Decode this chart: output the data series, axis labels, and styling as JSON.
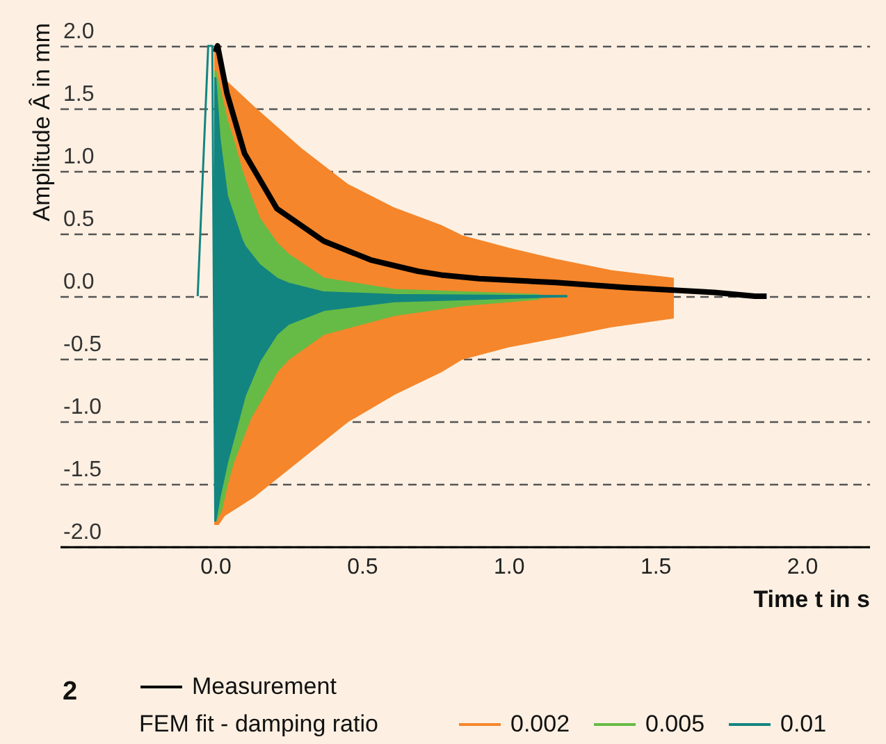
{
  "chart_data": {
    "type": "area",
    "xlabel": "Time t in s",
    "ylabel": "Amplitude Â in mm",
    "xlim": [
      -0.53,
      2.23
    ],
    "ylim": [
      -2.0,
      2.0
    ],
    "xticks": [
      {
        "value": 0,
        "label": "0.0"
      },
      0.5,
      {
        "value": 1,
        "label": "1.0"
      },
      1.5,
      {
        "value": 2,
        "label": "2.0"
      }
    ],
    "yticks": [
      {
        "value": -2,
        "label": "-2.0"
      },
      {
        "value": -1.5,
        "label": "-1.5"
      },
      {
        "value": -1,
        "label": "-1.0"
      },
      {
        "value": -0.5,
        "label": "-0.5"
      },
      {
        "value": 0,
        "label": "0.0"
      },
      0.5,
      {
        "value": 1,
        "label": "1.0"
      },
      1.5,
      {
        "value": 2,
        "label": "2.0"
      }
    ],
    "grid": "y",
    "legend": "bottom",
    "legend_title": "FEM fit - damping ratio",
    "annotations": [
      "2"
    ],
    "series": [
      {
        "name": "Measurement",
        "type": "line",
        "color": "#000000",
        "x": [
          0.0,
          0.008,
          0.04,
          0.1,
          0.21,
          0.37,
          0.53,
          0.69,
          0.77,
          0.9,
          1.16,
          1.4,
          1.55,
          1.7,
          1.84,
          1.88
        ],
        "values": [
          1.95,
          2.0,
          1.62,
          1.14,
          0.7,
          0.44,
          0.29,
          0.2,
          0.17,
          0.14,
          0.11,
          0.07,
          0.05,
          0.03,
          0.0,
          0.0
        ]
      },
      {
        "name": "0.002",
        "color": "#f5862b",
        "x": [
          0.0,
          0.01,
          0.03,
          0.13,
          0.29,
          0.45,
          0.61,
          0.77,
          0.84,
          1.0,
          1.16,
          1.35,
          1.56
        ],
        "values": [
          1.95,
          1.9,
          1.73,
          1.51,
          1.18,
          0.89,
          0.7,
          0.56,
          0.48,
          0.38,
          0.29,
          0.2,
          0.14
        ]
      },
      {
        "color": "#f5862b",
        "x": [
          0.0,
          0.01,
          0.03,
          0.13,
          0.29,
          0.45,
          0.61,
          0.77,
          0.84,
          1.0,
          1.16,
          1.35,
          1.56
        ],
        "values": [
          -1.82,
          -1.82,
          -1.75,
          -1.6,
          -1.3,
          -1.0,
          -0.78,
          -0.6,
          -0.5,
          -0.4,
          -0.33,
          -0.24,
          -0.17
        ]
      },
      {
        "name": "0.005",
        "color": "#66bb46",
        "x": [
          0.0,
          0.02,
          0.04,
          0.06,
          0.09,
          0.12,
          0.15,
          0.21,
          0.25,
          0.37,
          0.61,
          0.85,
          1.1
        ],
        "values": [
          1.8,
          1.6,
          1.4,
          1.25,
          1.0,
          0.8,
          0.62,
          0.42,
          0.33,
          0.14,
          0.05,
          0.03,
          0.01
        ]
      },
      {
        "color": "#66bb46",
        "x": [
          0.0,
          0.02,
          0.04,
          0.06,
          0.09,
          0.12,
          0.15,
          0.21,
          0.25,
          0.37,
          0.61,
          0.85,
          1.1
        ],
        "values": [
          -1.8,
          -1.71,
          -1.5,
          -1.33,
          -1.15,
          -0.97,
          -0.85,
          -0.6,
          -0.5,
          -0.3,
          -0.15,
          -0.07,
          -0.02
        ]
      },
      {
        "name": "0.01",
        "color": "#138580",
        "x": [
          0.0,
          0.015,
          0.04,
          0.09,
          0.1,
          0.15,
          0.21,
          0.25,
          0.37,
          0.61,
          1.2
        ],
        "values": [
          1.75,
          1.25,
          0.8,
          0.45,
          0.4,
          0.25,
          0.14,
          0.1,
          0.03,
          0.01,
          0.0
        ]
      },
      {
        "color": "#138580",
        "x": [
          0.0,
          0.015,
          0.04,
          0.09,
          0.1,
          0.15,
          0.21,
          0.25,
          0.37,
          0.61,
          1.2
        ],
        "values": [
          -1.8,
          -1.6,
          -1.33,
          -0.89,
          -0.8,
          -0.52,
          -0.3,
          -0.22,
          -0.11,
          -0.04,
          0.0
        ]
      },
      {
        "type": "line",
        "color": "#138580",
        "x": [
          -0.06,
          -0.024,
          -0.01,
          0.0
        ],
        "values": [
          0.0,
          2.0,
          2.0,
          -1.8
        ]
      }
    ]
  }
}
